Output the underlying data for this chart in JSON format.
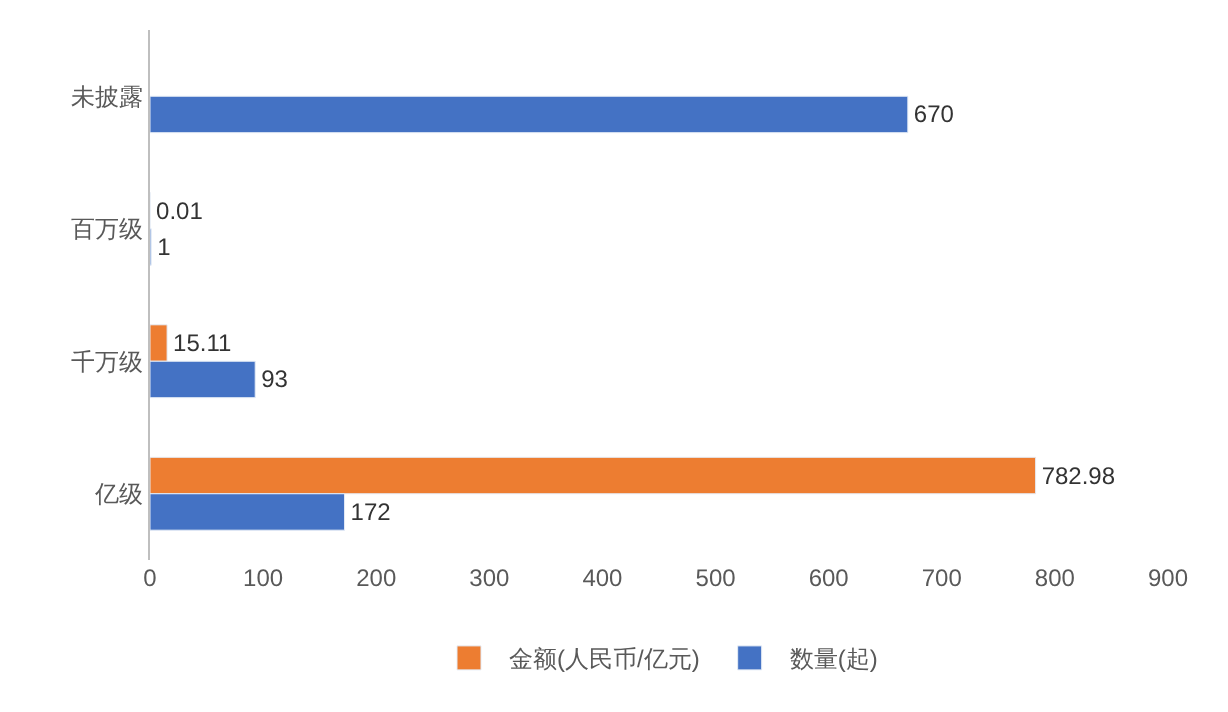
{
  "chart_data": {
    "type": "bar",
    "orientation": "horizontal",
    "categories": [
      "未披露",
      "百万级",
      "千万级",
      "亿级"
    ],
    "series": [
      {
        "name": "金额(人民币/亿元)",
        "color": "#ed7d31",
        "values": [
          null,
          0.01,
          15.11,
          782.98
        ]
      },
      {
        "name": "数量(起)",
        "color": "#4472c4",
        "values": [
          670,
          1,
          93,
          172
        ]
      }
    ],
    "xlim": [
      0,
      900
    ],
    "xticks": [
      0,
      100,
      200,
      300,
      400,
      500,
      600,
      700,
      800,
      900
    ],
    "data_labels": true,
    "legend": "bottom",
    "grid": false
  }
}
